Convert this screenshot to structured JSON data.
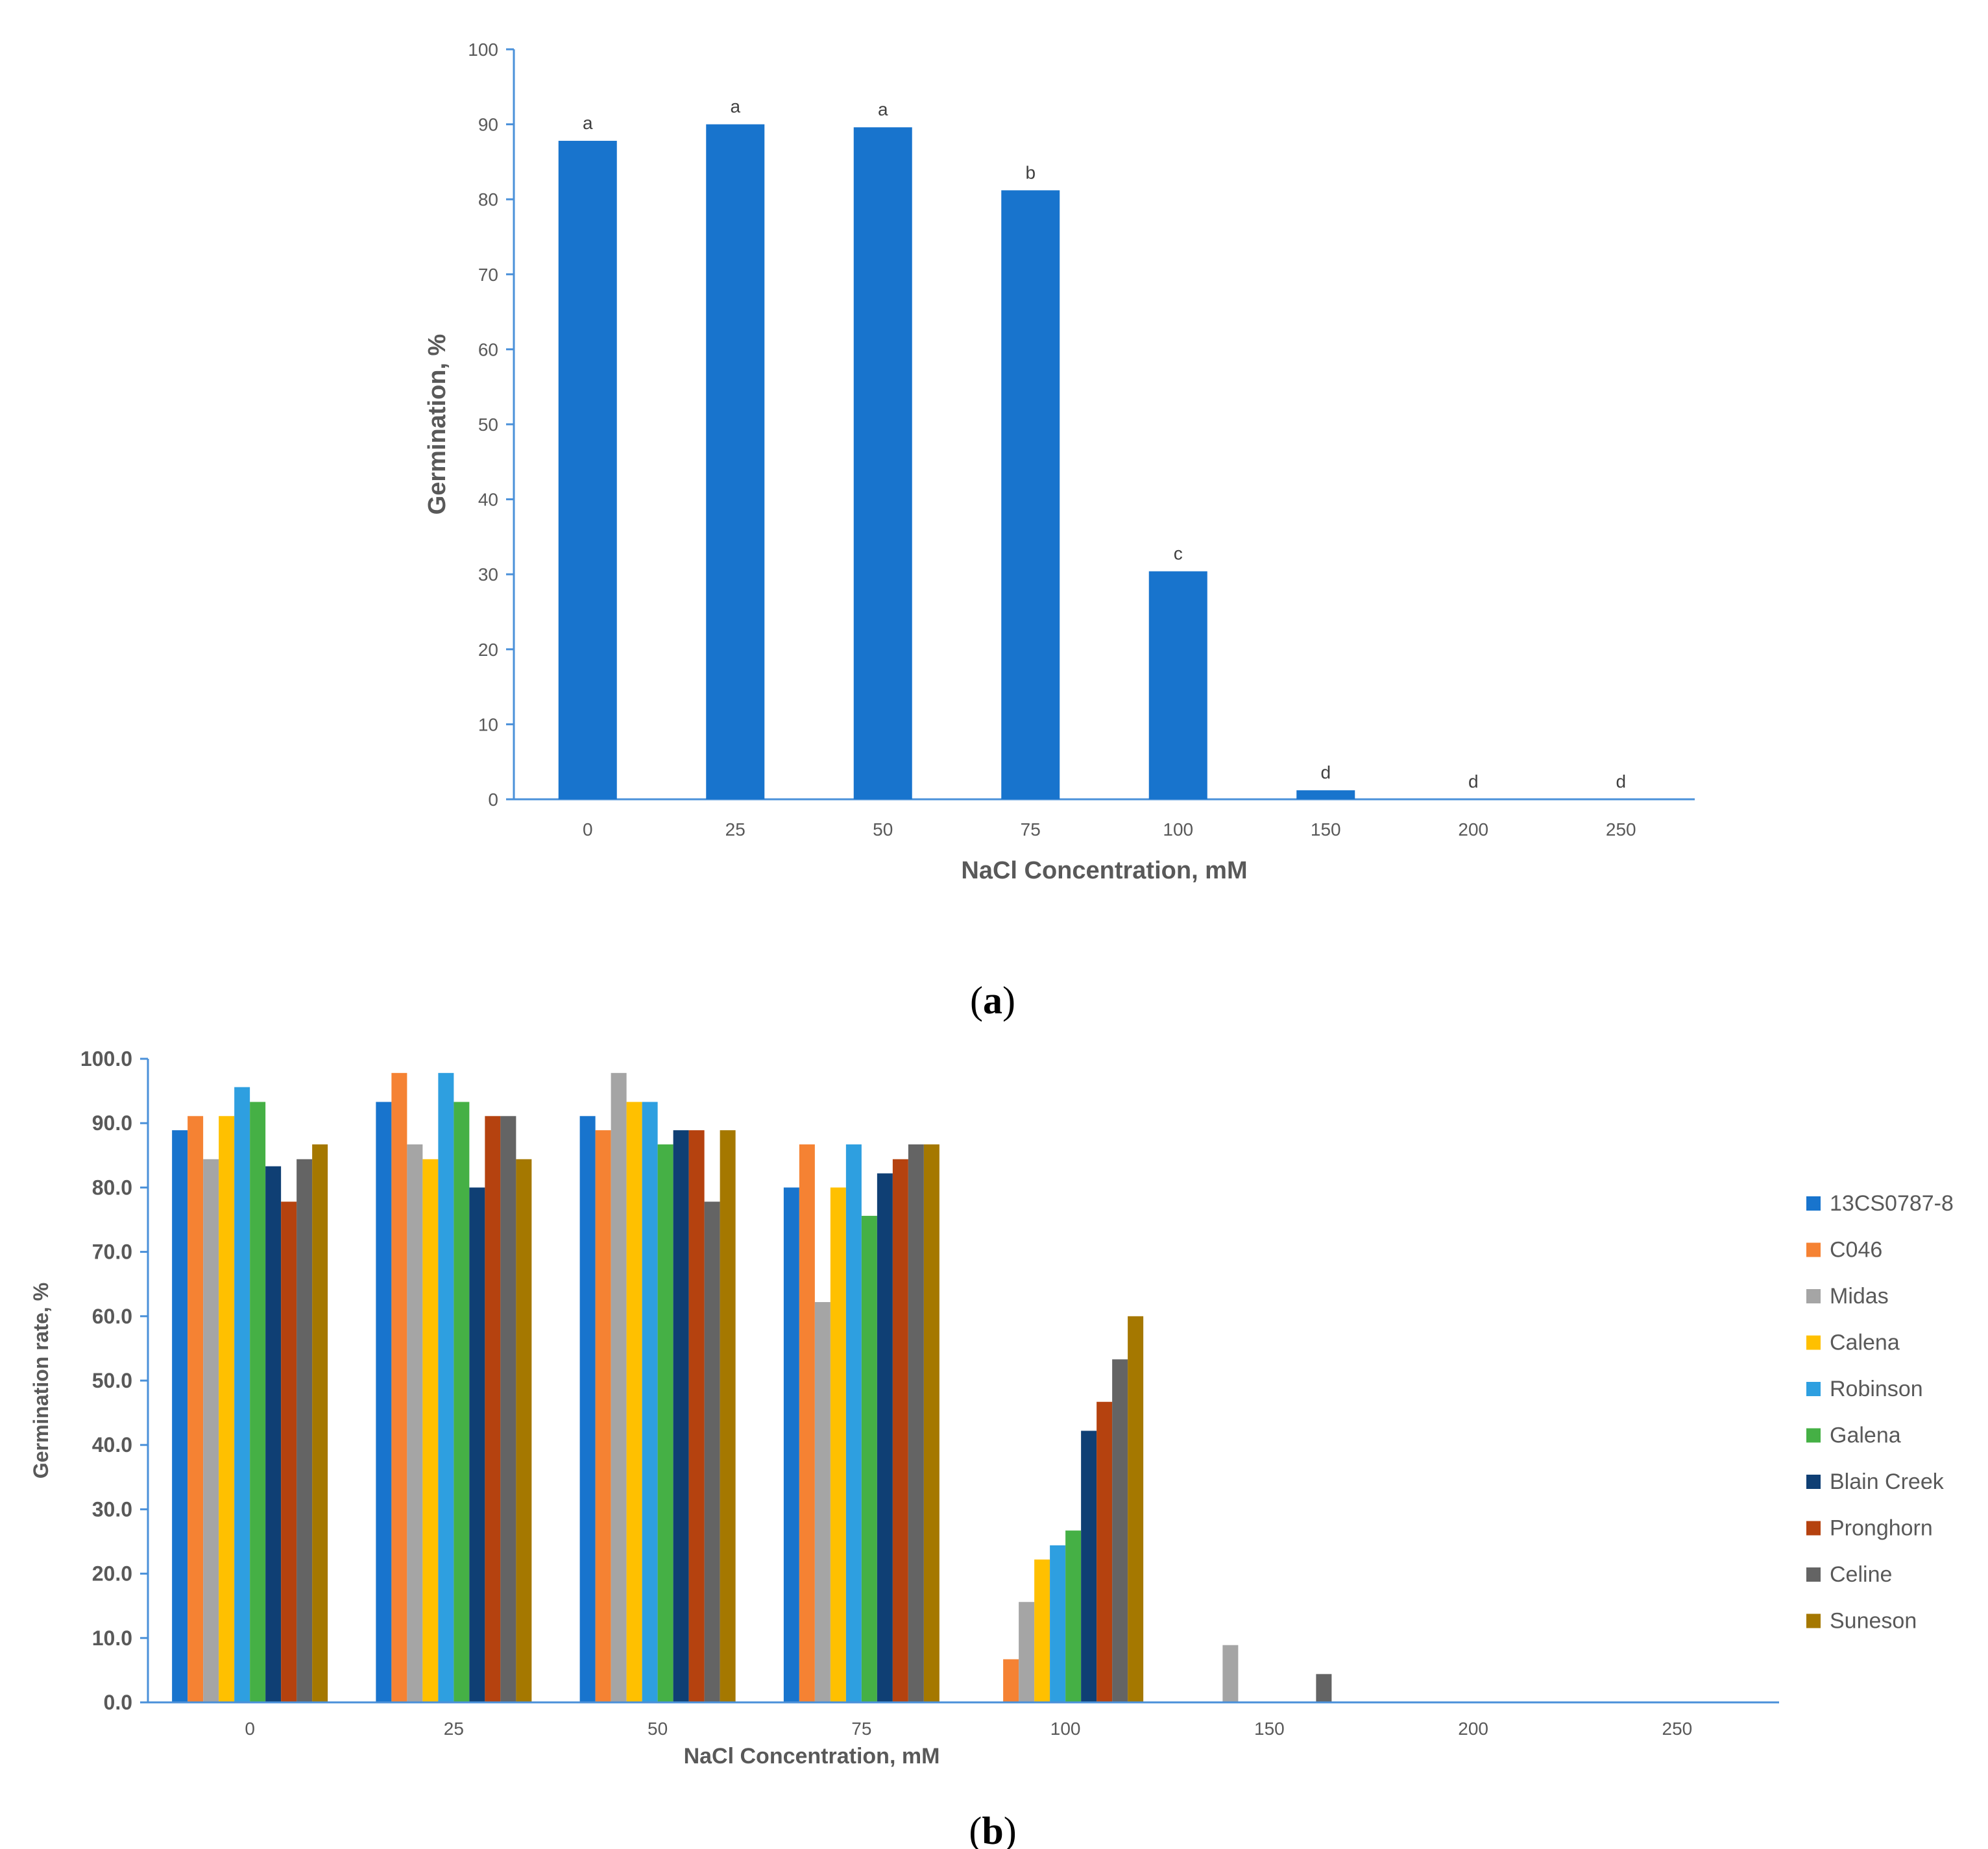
{
  "chart_data": [
    {
      "type": "bar",
      "panel": "a",
      "categories": [
        "0",
        "25",
        "50",
        "75",
        "100",
        "150",
        "200",
        "250"
      ],
      "values": [
        87.8,
        90,
        89.6,
        81.2,
        30.4,
        1.2,
        0,
        0
      ],
      "significance_letters": [
        "a",
        "a",
        "a",
        "b",
        "c",
        "d",
        "d",
        "d"
      ],
      "xlabel": "NaCl Concentration,  mM",
      "ylabel": "Germination, %",
      "ylim": [
        0,
        100
      ],
      "yticks": [
        "0",
        "10",
        "20",
        "30",
        "40",
        "50",
        "60",
        "70",
        "80",
        "90",
        "100"
      ],
      "color": "#1874CD",
      "grid": false
    },
    {
      "type": "bar",
      "panel": "b",
      "categories": [
        "0",
        "25",
        "50",
        "75",
        "100",
        "150",
        "200",
        "250"
      ],
      "xlabel": "NaCl Concentration,  mM",
      "ylabel": "Germination rate, %",
      "ylim": [
        0,
        100
      ],
      "yticks": [
        "0.0",
        "10.0",
        "20.0",
        "30.0",
        "40.0",
        "50.0",
        "60.0",
        "70.0",
        "80.0",
        "90.0",
        "100.0"
      ],
      "legend_position": "right",
      "grid": false,
      "series": [
        {
          "name": "13CS0787-8",
          "color": "#1874CD",
          "values": [
            88.9,
            93.3,
            91.1,
            80.0,
            0,
            0,
            0,
            0
          ]
        },
        {
          "name": "C046",
          "color": "#F58233",
          "values": [
            91.1,
            97.8,
            88.9,
            86.7,
            6.7,
            0,
            0,
            0
          ]
        },
        {
          "name": "Midas",
          "color": "#A5A5A5",
          "values": [
            84.4,
            86.7,
            97.8,
            62.2,
            15.6,
            8.9,
            0,
            0
          ]
        },
        {
          "name": "Calena",
          "color": "#FFC000",
          "values": [
            91.1,
            84.4,
            93.3,
            80.0,
            22.2,
            0,
            0,
            0
          ]
        },
        {
          "name": "Robinson",
          "color": "#2E9FE0",
          "values": [
            95.6,
            97.8,
            93.3,
            86.7,
            24.4,
            0,
            0,
            0
          ]
        },
        {
          "name": "Galena",
          "color": "#45B045",
          "values": [
            93.3,
            93.3,
            86.7,
            75.6,
            26.7,
            0,
            0,
            0
          ]
        },
        {
          "name": "Blain Creek",
          "color": "#0F3F74",
          "values": [
            83.3,
            80.0,
            88.9,
            82.2,
            42.2,
            0,
            0,
            0
          ]
        },
        {
          "name": "Pronghorn",
          "color": "#B5420F",
          "values": [
            77.8,
            91.1,
            88.9,
            84.4,
            46.7,
            0,
            0,
            0
          ]
        },
        {
          "name": "Celine",
          "color": "#646464",
          "values": [
            84.4,
            91.1,
            77.8,
            86.7,
            53.3,
            4.4,
            0,
            0
          ]
        },
        {
          "name": "Suneson",
          "color": "#A57800",
          "values": [
            86.7,
            84.4,
            88.9,
            86.7,
            60.0,
            0,
            0,
            0
          ]
        }
      ]
    }
  ],
  "panel_labels": {
    "a_open": "(",
    "a_letter": "a",
    "a_close": ")",
    "b_open": "(",
    "b_letter": "b",
    "b_close": ")"
  }
}
